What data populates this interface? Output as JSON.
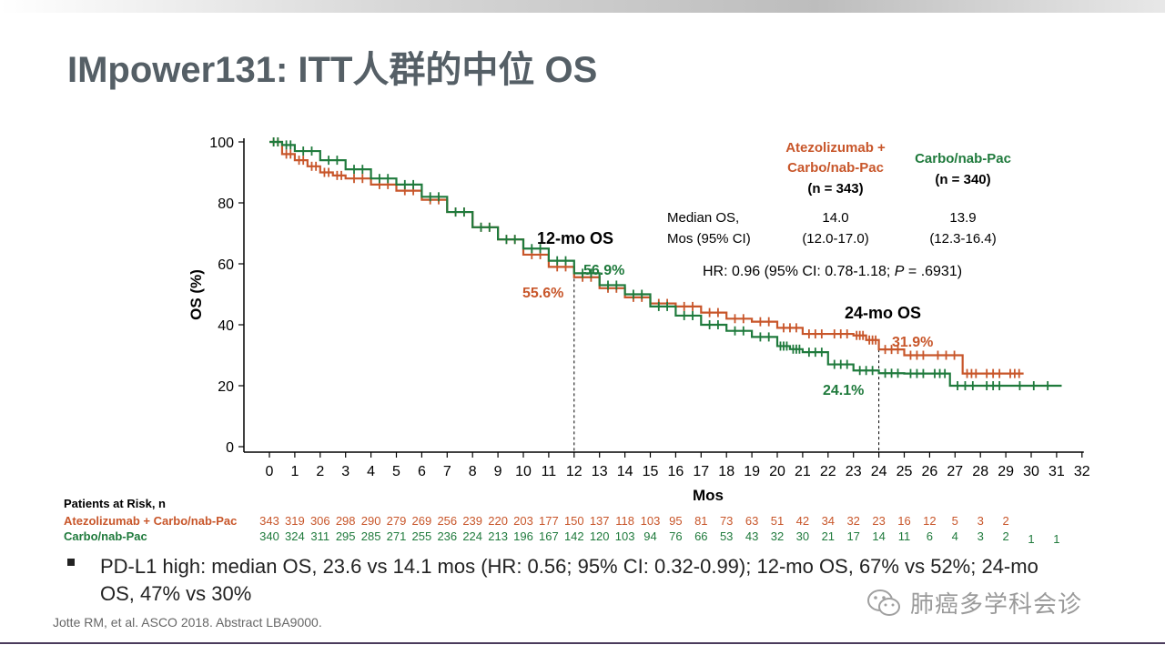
{
  "slide": {
    "title": "IMpower131: ITT人群的中位 OS",
    "bullet": "PD-L1 high: median OS, 23.6 vs 14.1 mos (HR: 0.56; 95% CI: 0.32-0.99); 12-mo OS, 67% vs 52%; 24-mo OS, 47% vs 30%",
    "citation": "Jotte RM, et al. ASCO 2018. Abstract LBA9000.",
    "watermark": "肺癌多学科会诊"
  },
  "colors": {
    "atezo": "#c8562a",
    "carbo": "#1f7a3c",
    "title": "#555f66"
  },
  "chart_data": {
    "type": "line",
    "subtype": "kaplan-meier",
    "xlabel": "Mos",
    "ylabel": "OS (%)",
    "xlim": [
      0,
      32
    ],
    "ylim": [
      0,
      100
    ],
    "x_ticks": [
      0,
      1,
      2,
      3,
      4,
      5,
      6,
      7,
      8,
      9,
      10,
      11,
      12,
      13,
      14,
      15,
      16,
      17,
      18,
      19,
      20,
      21,
      22,
      23,
      24,
      25,
      26,
      27,
      28,
      29,
      30,
      31,
      32
    ],
    "y_ticks": [
      0,
      20,
      40,
      60,
      80,
      100
    ],
    "grid": false,
    "legend": {
      "atezo_name_line1": "Atezolizumab +",
      "atezo_name_line2": "Carbo/nab-Pac",
      "atezo_n": "(n = 343)",
      "carbo_name": "Carbo/nab-Pac",
      "carbo_n": "(n = 340)"
    },
    "stats_table": {
      "row_label_line1": "Median OS,",
      "row_label_line2": "Mos (95% CI)",
      "atezo_median": "14.0",
      "atezo_ci": "(12.0-17.0)",
      "carbo_median": "13.9",
      "carbo_ci": "(12.3-16.4)"
    },
    "hr_prefix": "HR: 0.96 (95% CI: 0.78-1.18; ",
    "hr_p": "P",
    "hr_suffix": " = .6931)",
    "annotations": {
      "os12_label": "12-mo OS",
      "os12_atezo": "55.6%",
      "os12_carbo": "56.9%",
      "os24_label": "24-mo OS",
      "os24_atezo": "31.9%",
      "os24_carbo": "24.1%"
    },
    "reference_lines_x": [
      12,
      24
    ],
    "series": [
      {
        "name": "Atezolizumab + Carbo/nab-Pac",
        "color": "#c8562a",
        "x": [
          0,
          0.5,
          1,
          1.5,
          2,
          2.5,
          3,
          4,
          5,
          6,
          7,
          8,
          9,
          10,
          11,
          12,
          13,
          14,
          15,
          16,
          17,
          18,
          19,
          20,
          21,
          22,
          23,
          23.5,
          24,
          25,
          26,
          27.3,
          28,
          29,
          29.7
        ],
        "y": [
          100,
          96,
          94,
          92,
          90,
          89,
          88,
          86,
          84,
          81,
          77,
          72,
          68,
          63,
          59,
          55.6,
          52,
          49,
          47,
          46,
          44,
          42,
          41,
          39,
          37,
          37,
          36.5,
          35,
          31.9,
          30,
          30,
          24,
          24,
          24,
          24
        ]
      },
      {
        "name": "Carbo/nab-Pac",
        "color": "#1f7a3c",
        "x": [
          0,
          0.5,
          1,
          2,
          3,
          4,
          5,
          6,
          7,
          8,
          9,
          10,
          11,
          12,
          13,
          14,
          15,
          16,
          17,
          18,
          19,
          20,
          20.5,
          21,
          22,
          23,
          24,
          25,
          26,
          26.8,
          28,
          29,
          31.2
        ],
        "y": [
          100,
          99,
          97,
          94,
          91,
          88,
          86,
          82,
          77,
          72,
          68,
          65,
          61,
          56.9,
          53,
          50,
          46,
          43,
          40,
          38,
          36,
          33,
          32,
          31,
          27,
          25,
          24.1,
          24,
          24,
          20,
          20,
          20,
          20
        ]
      }
    ],
    "risk_table": {
      "header": "Patients at Risk, n",
      "rows": [
        {
          "label": "Atezolizumab + Carbo/nab-Pac",
          "values": [
            "343",
            "319",
            "306",
            "298",
            "290",
            "279",
            "269",
            "256",
            "239",
            "220",
            "203",
            "177",
            "150",
            "137",
            "118",
            "103",
            "95",
            "81",
            "73",
            "63",
            "51",
            "42",
            "34",
            "32",
            "23",
            "16",
            "12",
            "5",
            "3",
            "2"
          ]
        },
        {
          "label": "Carbo/nab-Pac",
          "values": [
            "340",
            "324",
            "311",
            "295",
            "285",
            "271",
            "255",
            "236",
            "224",
            "213",
            "196",
            "167",
            "142",
            "120",
            "103",
            "94",
            "76",
            "66",
            "53",
            "43",
            "32",
            "30",
            "21",
            "17",
            "14",
            "11",
            "6",
            "4",
            "3",
            "2",
            "1",
            "1"
          ]
        }
      ]
    }
  }
}
